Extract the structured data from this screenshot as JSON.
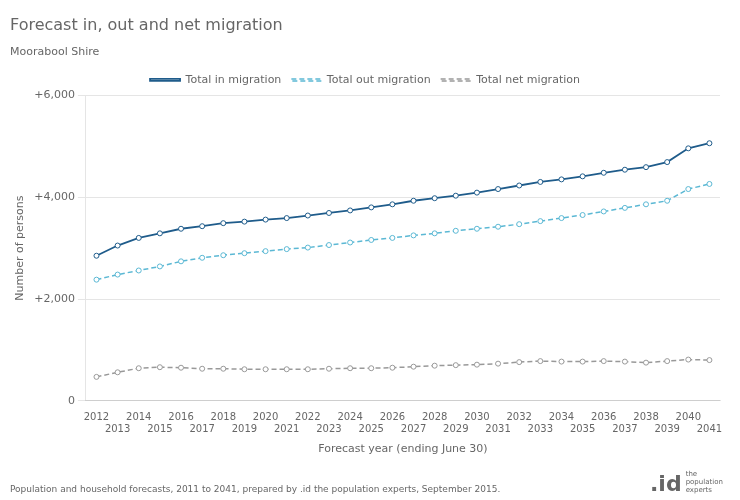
{
  "chart_data": {
    "type": "line",
    "title": "Forecast in, out and net migration",
    "subtitle": "Moorabool Shire",
    "xlabel": "Forecast year (ending June 30)",
    "ylabel": "Number of persons",
    "annotations": [
      "Population and household forecasts, 2011 to 2041, prepared by .id the population experts, September 2015.",
      ".id",
      "the\npopulation\nexperts"
    ],
    "x": [
      2012,
      2013,
      2014,
      2015,
      2016,
      2017,
      2018,
      2019,
      2020,
      2021,
      2022,
      2023,
      2024,
      2025,
      2026,
      2027,
      2028,
      2029,
      2030,
      2031,
      2032,
      2033,
      2034,
      2035,
      2036,
      2037,
      2038,
      2039,
      2040,
      2041
    ],
    "series": [
      {
        "name": "Total in migration",
        "color": "#1f5c8b",
        "line_style": "solid",
        "marker": "circle",
        "values": [
          2850,
          3050,
          3200,
          3290,
          3380,
          3430,
          3490,
          3520,
          3560,
          3590,
          3640,
          3690,
          3740,
          3800,
          3860,
          3930,
          3980,
          4030,
          4090,
          4160,
          4230,
          4300,
          4350,
          4410,
          4480,
          4540,
          4590,
          4690,
          4960,
          5060
        ]
      },
      {
        "name": "Total out migration",
        "color": "#5bb8d4",
        "line_style": "dashed",
        "marker": "circle",
        "values": [
          2380,
          2480,
          2560,
          2640,
          2740,
          2810,
          2860,
          2900,
          2940,
          2980,
          3010,
          3060,
          3110,
          3160,
          3200,
          3250,
          3290,
          3340,
          3380,
          3420,
          3470,
          3530,
          3590,
          3650,
          3720,
          3790,
          3860,
          3930,
          4160,
          4260
        ]
      },
      {
        "name": "Total net migration",
        "color": "#999999",
        "line_style": "dashed",
        "marker": "circle",
        "values": [
          470,
          560,
          640,
          660,
          650,
          630,
          630,
          620,
          620,
          620,
          620,
          630,
          640,
          640,
          650,
          670,
          690,
          700,
          710,
          730,
          760,
          780,
          770,
          770,
          780,
          770,
          750,
          780,
          810,
          800
        ]
      }
    ],
    "xlim": [
      2011.5,
      2041.5
    ],
    "xticks": [
      2012,
      2013,
      2014,
      2015,
      2016,
      2017,
      2018,
      2019,
      2020,
      2021,
      2022,
      2023,
      2024,
      2025,
      2026,
      2027,
      2028,
      2029,
      2030,
      2031,
      2032,
      2033,
      2034,
      2035,
      2036,
      2037,
      2038,
      2039,
      2040,
      2041
    ],
    "ylim": [
      0,
      6000
    ],
    "yticks": [
      0,
      {
        "value": 2000,
        "label": "+2,000"
      },
      {
        "value": 4000,
        "label": "+4,000"
      },
      {
        "value": 6000,
        "label": "+6,000"
      }
    ],
    "grid": true,
    "legend": "top"
  }
}
